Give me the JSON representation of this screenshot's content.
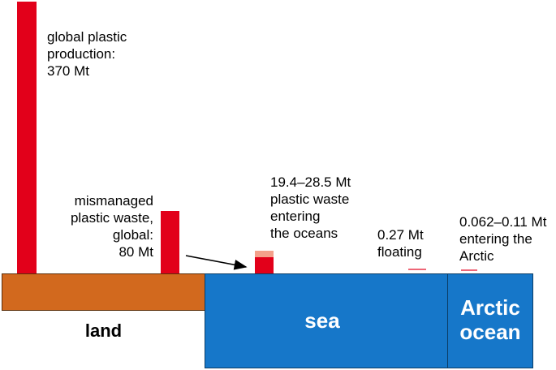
{
  "flows": [
    {
      "id": "production",
      "label": "global plastic\nproduction:\n370 Mt",
      "value_mt": 370
    },
    {
      "id": "mismanaged",
      "label": "mismanaged\nplastic waste,\nglobal:\n80 Mt",
      "value_mt": 80
    },
    {
      "id": "entering_oceans",
      "label": "19.4–28.5 Mt\nplastic waste\nentering\nthe oceans",
      "value_min_mt": 19.4,
      "value_max_mt": 28.5
    },
    {
      "id": "floating",
      "label": "0.27 Mt\nfloating",
      "value_mt": 0.27
    },
    {
      "id": "arctic",
      "label": "0.062–0.11 Mt\nentering the\nArctic",
      "value_min_mt": 0.062,
      "value_max_mt": 0.11
    }
  ],
  "zones": {
    "land": "land",
    "sea": "sea",
    "arctic": "Arctic\nocean"
  },
  "colors": {
    "bar": "#e2001a",
    "bar_range": "#f4a08a",
    "land": "#d2691e",
    "sea": "#1677c9"
  }
}
